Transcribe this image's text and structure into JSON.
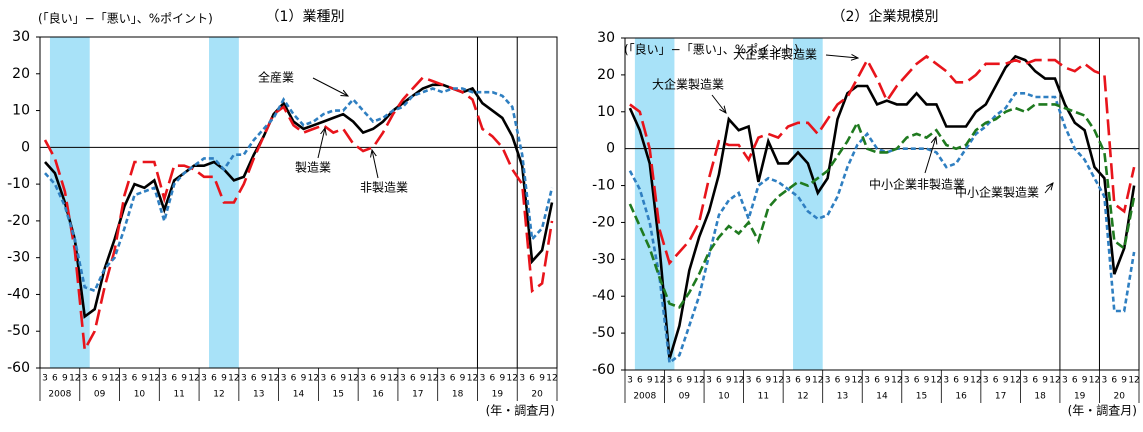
{
  "chart_data": [
    {
      "type": "line",
      "title": "（1）業種別",
      "y_label": "(「良い」−「悪い」、%ポイント)",
      "x_label": "(年・調査月)",
      "categories": [
        "3",
        "6",
        "9",
        "12",
        "3",
        "6",
        "9",
        "12",
        "3",
        "6",
        "9",
        "12",
        "3",
        "6",
        "9",
        "12",
        "3",
        "6",
        "9",
        "12",
        "3",
        "6",
        "9",
        "12",
        "3",
        "6",
        "9",
        "12",
        "3",
        "6",
        "9",
        "12",
        "3",
        "6",
        "9",
        "12",
        "3",
        "6",
        "9",
        "12",
        "3",
        "6",
        "9",
        "12",
        "3",
        "6",
        "9",
        "12",
        "3",
        "6",
        "9",
        "12"
      ],
      "years": [
        "2008",
        "09",
        "10",
        "11",
        "12",
        "13",
        "14",
        "15",
        "16",
        "17",
        "18",
        "19",
        "20"
      ],
      "ylim": [
        -60,
        30
      ],
      "yticks": [
        -60,
        -50,
        -40,
        -30,
        -20,
        -10,
        0,
        10,
        20,
        30
      ],
      "series": [
        {
          "name": "全産業",
          "color": "#000000",
          "dash": "solid",
          "values": [
            -4,
            -7,
            -15,
            -25,
            -46,
            -44,
            -33,
            -25,
            -16,
            -10,
            -11,
            -9,
            -17,
            -9,
            -7,
            -5,
            -5,
            -4,
            -6,
            -9,
            -8,
            -2,
            3,
            9,
            12,
            7,
            5,
            6,
            7,
            8,
            9,
            7,
            4,
            5,
            7,
            10,
            12,
            14,
            16,
            17,
            17,
            16,
            15,
            16,
            12,
            10,
            8,
            3,
            -5,
            -31,
            -28,
            -15
          ]
        },
        {
          "name": "製造業",
          "color": "#e8141b",
          "dash": "long",
          "values": [
            2,
            -3,
            -12,
            -28,
            -55,
            -50,
            -38,
            -28,
            -13,
            -4,
            -4,
            -4,
            -14,
            -5,
            -5,
            -6,
            -8,
            -8,
            -15,
            -15,
            -10,
            -3,
            3,
            9,
            11,
            6,
            4,
            5,
            6,
            4,
            5,
            1,
            -1,
            0,
            4,
            9,
            13,
            16,
            19,
            18,
            17,
            16,
            15,
            13,
            5,
            3,
            0,
            -6,
            -10,
            -39,
            -37,
            -20
          ]
        },
        {
          "name": "非製造業",
          "color": "#2f7fc1",
          "dash": "short",
          "values": [
            -7,
            -10,
            -16,
            -25,
            -38,
            -39,
            -33,
            -30,
            -22,
            -13,
            -12,
            -11,
            -20,
            -10,
            -7,
            -5,
            -3,
            -3,
            -6,
            -2,
            -2,
            2,
            5,
            8,
            13,
            9,
            6,
            7,
            9,
            10,
            10,
            13,
            10,
            7,
            8,
            10,
            11,
            14,
            15,
            16,
            15,
            16,
            16,
            15,
            15,
            15,
            14,
            11,
            -2,
            -25,
            -22,
            -11
          ]
        }
      ]
    },
    {
      "type": "line",
      "title": "（2）企業規模別",
      "y_label": "(「良い」−「悪い」、%ポイント)",
      "x_label": "(年・調査月)",
      "categories": [
        "3",
        "6",
        "9",
        "12",
        "3",
        "6",
        "9",
        "12",
        "3",
        "6",
        "9",
        "12",
        "3",
        "6",
        "9",
        "12",
        "3",
        "6",
        "9",
        "12",
        "3",
        "6",
        "9",
        "12",
        "3",
        "6",
        "9",
        "12",
        "3",
        "6",
        "9",
        "12",
        "3",
        "6",
        "9",
        "12",
        "3",
        "6",
        "9",
        "12",
        "3",
        "6",
        "9",
        "12",
        "3",
        "6",
        "9",
        "12",
        "3",
        "6",
        "9",
        "12"
      ],
      "years": [
        "2008",
        "09",
        "10",
        "11",
        "12",
        "13",
        "14",
        "15",
        "16",
        "17",
        "18",
        "19",
        "20"
      ],
      "ylim": [
        -60,
        30
      ],
      "yticks": [
        -60,
        -50,
        -40,
        -30,
        -20,
        -10,
        0,
        10,
        20,
        30
      ],
      "series": [
        {
          "name": "大企業製造業",
          "color": "#000000",
          "dash": "solid",
          "values": [
            11,
            5,
            -4,
            -27,
            -57,
            -48,
            -33,
            -24,
            -17,
            -7,
            8,
            5,
            6,
            -9,
            2,
            -4,
            -4,
            -1,
            -4,
            -12,
            -8,
            8,
            15,
            17,
            17,
            12,
            13,
            12,
            12,
            15,
            12,
            12,
            6,
            6,
            6,
            10,
            12,
            17,
            22,
            25,
            24,
            21,
            19,
            19,
            12,
            7,
            5,
            -5,
            -8,
            -34,
            -27,
            -10
          ]
        },
        {
          "name": "大企業非製造業",
          "color": "#e8141b",
          "dash": "long",
          "values": [
            12,
            10,
            0,
            -22,
            -31,
            -28,
            -25,
            -20,
            -8,
            2,
            1,
            1,
            -3,
            3,
            4,
            3,
            6,
            7,
            7,
            4,
            8,
            12,
            14,
            19,
            24,
            19,
            13,
            17,
            20,
            23,
            25,
            23,
            21,
            18,
            18,
            20,
            23,
            23,
            23,
            24,
            23,
            24,
            24,
            24,
            22,
            21,
            23,
            21,
            20,
            -15,
            -17,
            -5
          ]
        },
        {
          "name": "中小企業製造業",
          "color": "#2f7fc1",
          "dash": "short",
          "values": [
            -6,
            -11,
            -20,
            -35,
            -58,
            -56,
            -48,
            -40,
            -29,
            -18,
            -14,
            -12,
            -19,
            -10,
            -8,
            -9,
            -11,
            -13,
            -17,
            -19,
            -18,
            -13,
            -5,
            1,
            4,
            0,
            -1,
            0,
            0,
            0,
            0,
            -1,
            -5,
            -4,
            0,
            4,
            6,
            9,
            11,
            15,
            15,
            14,
            14,
            14,
            6,
            0,
            -3,
            -8,
            -13,
            -44,
            -44,
            -28
          ]
        },
        {
          "name": "中小企業非製造業",
          "color": "#1f7a1f",
          "dash": "medium",
          "values": [
            -15,
            -21,
            -27,
            -35,
            -42,
            -43,
            -39,
            -34,
            -28,
            -24,
            -21,
            -23,
            -20,
            -25,
            -16,
            -13,
            -11,
            -9,
            -10,
            -8,
            -6,
            -2,
            2,
            7,
            0,
            -1,
            -1,
            0,
            3,
            4,
            3,
            5,
            1,
            0,
            1,
            5,
            7,
            8,
            10,
            11,
            10,
            12,
            12,
            12,
            11,
            10,
            9,
            5,
            -1,
            -25,
            -27,
            -13
          ]
        }
      ]
    }
  ]
}
